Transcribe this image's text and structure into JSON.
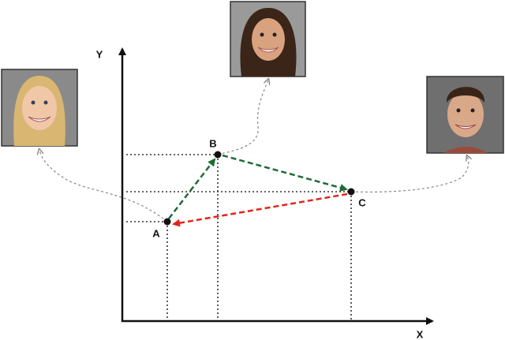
{
  "axes": {
    "x_label": "X",
    "y_label": "Y"
  },
  "points": [
    {
      "label": "A"
    },
    {
      "label": "B"
    },
    {
      "label": "C"
    }
  ]
}
